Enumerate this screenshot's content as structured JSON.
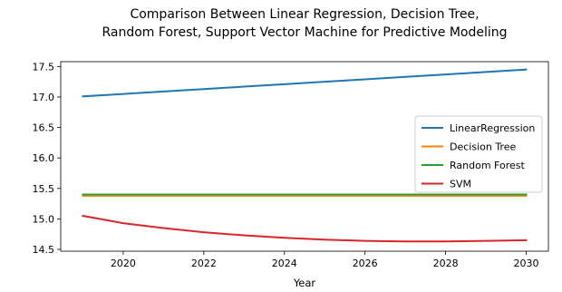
{
  "chart_data": {
    "type": "line",
    "title_lines": [
      "Comparison Between Linear Regression, Decision Tree,",
      "Random Forest, Support Vector Machine for Predictive Modeling"
    ],
    "xlabel": "Year",
    "ylabel": "",
    "x_ticks": [
      2020,
      2022,
      2024,
      2026,
      2028,
      2030
    ],
    "y_ticks": [
      14.5,
      15.0,
      15.5,
      16.0,
      16.5,
      17.0,
      17.5
    ],
    "y_tick_labels": [
      "14.5",
      "15.0",
      "15.5",
      "16.0",
      "16.5",
      "17.0",
      "17.5"
    ],
    "xlim": [
      2018.45,
      2030.55
    ],
    "ylim": [
      14.47,
      17.58
    ],
    "grid": false,
    "legend_position": "center-right",
    "series": [
      {
        "name": "LinearRegression",
        "color": "#1f77b4",
        "x": [
          2019,
          2020,
          2021,
          2022,
          2023,
          2024,
          2025,
          2026,
          2027,
          2028,
          2029,
          2030
        ],
        "y": [
          17.01,
          17.05,
          17.09,
          17.13,
          17.17,
          17.21,
          17.25,
          17.29,
          17.33,
          17.37,
          17.41,
          17.45
        ]
      },
      {
        "name": "Decision Tree",
        "color": "#ff7f0e",
        "x": [
          2019,
          2020,
          2021,
          2022,
          2023,
          2024,
          2025,
          2026,
          2027,
          2028,
          2029,
          2030
        ],
        "y": [
          15.38,
          15.38,
          15.38,
          15.38,
          15.38,
          15.38,
          15.38,
          15.38,
          15.38,
          15.38,
          15.38,
          15.38
        ]
      },
      {
        "name": "Random Forest",
        "color": "#2ca02c",
        "x": [
          2019,
          2020,
          2021,
          2022,
          2023,
          2024,
          2025,
          2026,
          2027,
          2028,
          2029,
          2030
        ],
        "y": [
          15.4,
          15.4,
          15.4,
          15.4,
          15.4,
          15.4,
          15.4,
          15.4,
          15.4,
          15.4,
          15.4,
          15.4
        ]
      },
      {
        "name": "SVM",
        "color": "#d62728",
        "x": [
          2019,
          2020,
          2021,
          2022,
          2023,
          2024,
          2025,
          2026,
          2027,
          2028,
          2029,
          2030
        ],
        "y": [
          15.05,
          14.93,
          14.85,
          14.78,
          14.73,
          14.69,
          14.66,
          14.64,
          14.63,
          14.63,
          14.64,
          14.65
        ]
      }
    ]
  }
}
